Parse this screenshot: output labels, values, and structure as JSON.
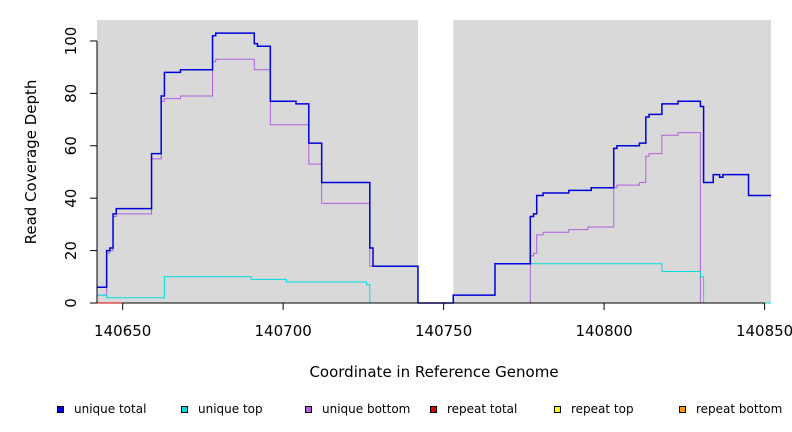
{
  "chart_data": {
    "type": "line",
    "title": "",
    "xlabel": "Coordinate in Reference Genome",
    "ylabel": "Read Coverage Depth",
    "xlim": [
      140642,
      140852
    ],
    "ylim": [
      0,
      108
    ],
    "xticks": [
      140650,
      140700,
      140750,
      140800,
      140850
    ],
    "yticks": [
      0,
      20,
      40,
      60,
      80,
      100
    ],
    "background": "#d9d9d9",
    "gap": [
      140742,
      140753
    ],
    "legend_position": "bottom",
    "series": [
      {
        "name": "unique total",
        "color": "#0000dd",
        "points": [
          [
            140642,
            6
          ],
          [
            140645,
            6
          ],
          [
            140645,
            20
          ],
          [
            140646,
            20
          ],
          [
            140646,
            21
          ],
          [
            140647,
            21
          ],
          [
            140647,
            34
          ],
          [
            140648,
            34
          ],
          [
            140648,
            36
          ],
          [
            140659,
            36
          ],
          [
            140659,
            57
          ],
          [
            140662,
            57
          ],
          [
            140662,
            79
          ],
          [
            140663,
            79
          ],
          [
            140663,
            88
          ],
          [
            140668,
            88
          ],
          [
            140668,
            89
          ],
          [
            140678,
            89
          ],
          [
            140678,
            102
          ],
          [
            140679,
            102
          ],
          [
            140679,
            103
          ],
          [
            140691,
            103
          ],
          [
            140691,
            99
          ],
          [
            140692,
            99
          ],
          [
            140692,
            98
          ],
          [
            140696,
            98
          ],
          [
            140696,
            77
          ],
          [
            140704,
            77
          ],
          [
            140704,
            76
          ],
          [
            140708,
            76
          ],
          [
            140708,
            61
          ],
          [
            140712,
            61
          ],
          [
            140712,
            46
          ],
          [
            140727,
            46
          ],
          [
            140727,
            21
          ],
          [
            140728,
            21
          ],
          [
            140728,
            14
          ],
          [
            140742,
            14
          ],
          [
            140742,
            0
          ],
          [
            140753,
            0
          ],
          [
            140753,
            3
          ],
          [
            140766,
            3
          ],
          [
            140766,
            15
          ],
          [
            140777,
            15
          ],
          [
            140777,
            33
          ],
          [
            140778,
            33
          ],
          [
            140778,
            34
          ],
          [
            140779,
            34
          ],
          [
            140779,
            41
          ],
          [
            140781,
            41
          ],
          [
            140781,
            42
          ],
          [
            140789,
            42
          ],
          [
            140789,
            43
          ],
          [
            140796,
            43
          ],
          [
            140796,
            44
          ],
          [
            140803,
            44
          ],
          [
            140803,
            59
          ],
          [
            140804,
            59
          ],
          [
            140804,
            60
          ],
          [
            140811,
            60
          ],
          [
            140811,
            61
          ],
          [
            140813,
            61
          ],
          [
            140813,
            71
          ],
          [
            140814,
            71
          ],
          [
            140814,
            72
          ],
          [
            140818,
            72
          ],
          [
            140818,
            76
          ],
          [
            140823,
            76
          ],
          [
            140823,
            77
          ],
          [
            140830,
            77
          ],
          [
            140830,
            75
          ],
          [
            140831,
            75
          ],
          [
            140831,
            46
          ],
          [
            140834,
            46
          ],
          [
            140834,
            49
          ],
          [
            140836,
            49
          ],
          [
            140836,
            48
          ],
          [
            140837,
            48
          ],
          [
            140837,
            49
          ],
          [
            140845,
            49
          ],
          [
            140845,
            41
          ],
          [
            140852,
            41
          ]
        ]
      },
      {
        "name": "unique top",
        "color": "#00dddd",
        "points": [
          [
            140642,
            3
          ],
          [
            140645,
            3
          ],
          [
            140645,
            2
          ],
          [
            140663,
            2
          ],
          [
            140663,
            10
          ],
          [
            140690,
            10
          ],
          [
            140690,
            9
          ],
          [
            140701,
            9
          ],
          [
            140701,
            8
          ],
          [
            140726,
            8
          ],
          [
            140726,
            7
          ],
          [
            140727,
            7
          ],
          [
            140727,
            0
          ],
          [
            140742,
            0
          ],
          [
            140742,
            0
          ],
          [
            140753,
            0
          ],
          [
            140753,
            3
          ],
          [
            140766,
            3
          ],
          [
            140766,
            15
          ],
          [
            140818,
            15
          ],
          [
            140818,
            12
          ],
          [
            140830,
            12
          ],
          [
            140830,
            10
          ],
          [
            140831,
            10
          ],
          [
            140831,
            0
          ],
          [
            140852,
            0
          ]
        ]
      },
      {
        "name": "unique bottom",
        "color": "#b060e0",
        "points": [
          [
            140642,
            3
          ],
          [
            140645,
            3
          ],
          [
            140645,
            19
          ],
          [
            140646,
            19
          ],
          [
            140646,
            20
          ],
          [
            140647,
            20
          ],
          [
            140647,
            33
          ],
          [
            140648,
            33
          ],
          [
            140648,
            34
          ],
          [
            140659,
            34
          ],
          [
            140659,
            55
          ],
          [
            140662,
            55
          ],
          [
            140662,
            77
          ],
          [
            140663,
            77
          ],
          [
            140663,
            78
          ],
          [
            140668,
            78
          ],
          [
            140668,
            79
          ],
          [
            140678,
            79
          ],
          [
            140678,
            92
          ],
          [
            140679,
            92
          ],
          [
            140679,
            93
          ],
          [
            140691,
            93
          ],
          [
            140691,
            89
          ],
          [
            140696,
            89
          ],
          [
            140696,
            68
          ],
          [
            140708,
            68
          ],
          [
            140708,
            53
          ],
          [
            140712,
            53
          ],
          [
            140712,
            38
          ],
          [
            140727,
            38
          ],
          [
            140727,
            14
          ],
          [
            140728,
            14
          ],
          [
            140728,
            14
          ],
          [
            140742,
            14
          ],
          [
            140742,
            0
          ],
          [
            140777,
            0
          ],
          [
            140777,
            18
          ],
          [
            140778,
            18
          ],
          [
            140778,
            19
          ],
          [
            140779,
            19
          ],
          [
            140779,
            26
          ],
          [
            140781,
            26
          ],
          [
            140781,
            27
          ],
          [
            140789,
            27
          ],
          [
            140789,
            28
          ],
          [
            140795,
            28
          ],
          [
            140795,
            29
          ],
          [
            140803,
            29
          ],
          [
            140803,
            44
          ],
          [
            140804,
            44
          ],
          [
            140804,
            45
          ],
          [
            140811,
            45
          ],
          [
            140811,
            46
          ],
          [
            140813,
            46
          ],
          [
            140813,
            56
          ],
          [
            140814,
            56
          ],
          [
            140814,
            57
          ],
          [
            140818,
            57
          ],
          [
            140818,
            64
          ],
          [
            140823,
            64
          ],
          [
            140823,
            65
          ],
          [
            140830,
            65
          ],
          [
            140830,
            0
          ],
          [
            140852,
            0
          ]
        ]
      },
      {
        "name": "repeat total",
        "color": "#dd0000",
        "points": [
          [
            140642,
            0
          ],
          [
            140742,
            0
          ],
          [
            140742,
            0
          ],
          [
            140852,
            0
          ]
        ]
      },
      {
        "name": "repeat top",
        "color": "#ffff00",
        "points": [
          [
            140642,
            0
          ],
          [
            140852,
            0
          ]
        ]
      },
      {
        "name": "repeat bottom",
        "color": "#ff9900",
        "points": [
          [
            140642,
            0
          ],
          [
            140742,
            0
          ],
          [
            140753,
            0
          ],
          [
            140852,
            0
          ]
        ]
      }
    ]
  },
  "legend": [
    {
      "label": "unique total",
      "color": "#0000dd"
    },
    {
      "label": "unique top",
      "color": "#00dddd"
    },
    {
      "label": "unique bottom",
      "color": "#b060e0"
    },
    {
      "label": "repeat total",
      "color": "#dd0000"
    },
    {
      "label": "repeat top",
      "color": "#ffff00"
    },
    {
      "label": "repeat bottom",
      "color": "#ff9900"
    }
  ]
}
